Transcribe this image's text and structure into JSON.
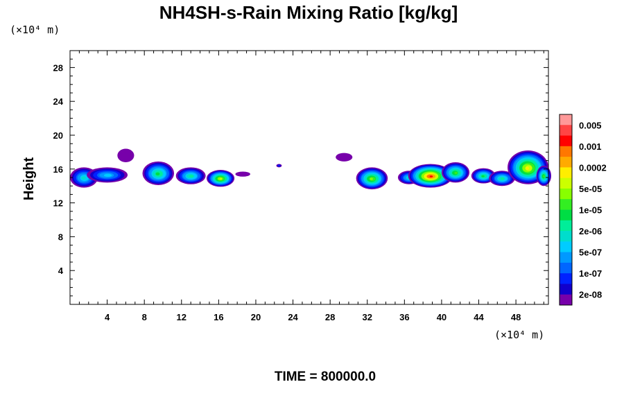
{
  "chart_data": {
    "type": "heatmap",
    "title": "NH4SH-s-Rain Mixing Ratio [kg/kg]",
    "ylabel": "Height",
    "xlabel": "",
    "x_unit": "(×10⁴ m)",
    "y_unit": "(×10⁴ m)",
    "footer": "TIME = 800000.0",
    "xlim": [
      0,
      51.5
    ],
    "ylim": [
      0,
      30
    ],
    "x_ticks": [
      4,
      8,
      12,
      16,
      20,
      24,
      28,
      32,
      36,
      40,
      44,
      48
    ],
    "y_ticks": [
      4,
      8,
      12,
      16,
      20,
      24,
      28
    ],
    "colorbar": {
      "labels": [
        "0.005",
        "0.001",
        "0.0002",
        "5e-05",
        "1e-05",
        "2e-06",
        "5e-07",
        "1e-07",
        "2e-08"
      ],
      "colors": [
        "#ff9999",
        "#ff4444",
        "#ff0000",
        "#ff7700",
        "#ffaa00",
        "#ffee00",
        "#ccff00",
        "#88ff00",
        "#33ee22",
        "#00dd44",
        "#00ee99",
        "#00ddcc",
        "#00ccff",
        "#0099ff",
        "#0066ff",
        "#0022ff",
        "#1100cc",
        "#7700aa"
      ]
    },
    "cloud_blobs": [
      {
        "x": 1.5,
        "y": 15.0,
        "rx": 1.5,
        "ry": 1.2,
        "level": 11
      },
      {
        "x": 4.0,
        "y": 15.3,
        "rx": 2.2,
        "ry": 0.9,
        "level": 12
      },
      {
        "x": 6.0,
        "y": 17.6,
        "rx": 0.9,
        "ry": 0.8,
        "level": 17
      },
      {
        "x": 9.5,
        "y": 15.5,
        "rx": 1.7,
        "ry": 1.4,
        "level": 9
      },
      {
        "x": 13.0,
        "y": 15.2,
        "rx": 1.6,
        "ry": 1.0,
        "level": 10
      },
      {
        "x": 16.2,
        "y": 14.9,
        "rx": 1.5,
        "ry": 1.0,
        "level": 6
      },
      {
        "x": 18.6,
        "y": 15.4,
        "rx": 0.8,
        "ry": 0.3,
        "level": 17
      },
      {
        "x": 22.5,
        "y": 16.4,
        "rx": 0.3,
        "ry": 0.2,
        "level": 15
      },
      {
        "x": 29.5,
        "y": 17.4,
        "rx": 0.9,
        "ry": 0.5,
        "level": 17
      },
      {
        "x": 32.5,
        "y": 14.9,
        "rx": 1.7,
        "ry": 1.3,
        "level": 7
      },
      {
        "x": 36.5,
        "y": 15.0,
        "rx": 1.2,
        "ry": 0.8,
        "level": 11
      },
      {
        "x": 38.8,
        "y": 15.2,
        "rx": 2.4,
        "ry": 1.4,
        "level": 2
      },
      {
        "x": 41.5,
        "y": 15.6,
        "rx": 1.5,
        "ry": 1.2,
        "level": 8
      },
      {
        "x": 44.5,
        "y": 15.2,
        "rx": 1.3,
        "ry": 0.9,
        "level": 9
      },
      {
        "x": 46.5,
        "y": 14.9,
        "rx": 1.4,
        "ry": 0.9,
        "level": 10
      },
      {
        "x": 49.3,
        "y": 16.2,
        "rx": 2.2,
        "ry": 2.0,
        "level": 5
      },
      {
        "x": 51.0,
        "y": 15.2,
        "rx": 0.8,
        "ry": 1.2,
        "level": 8
      }
    ]
  }
}
